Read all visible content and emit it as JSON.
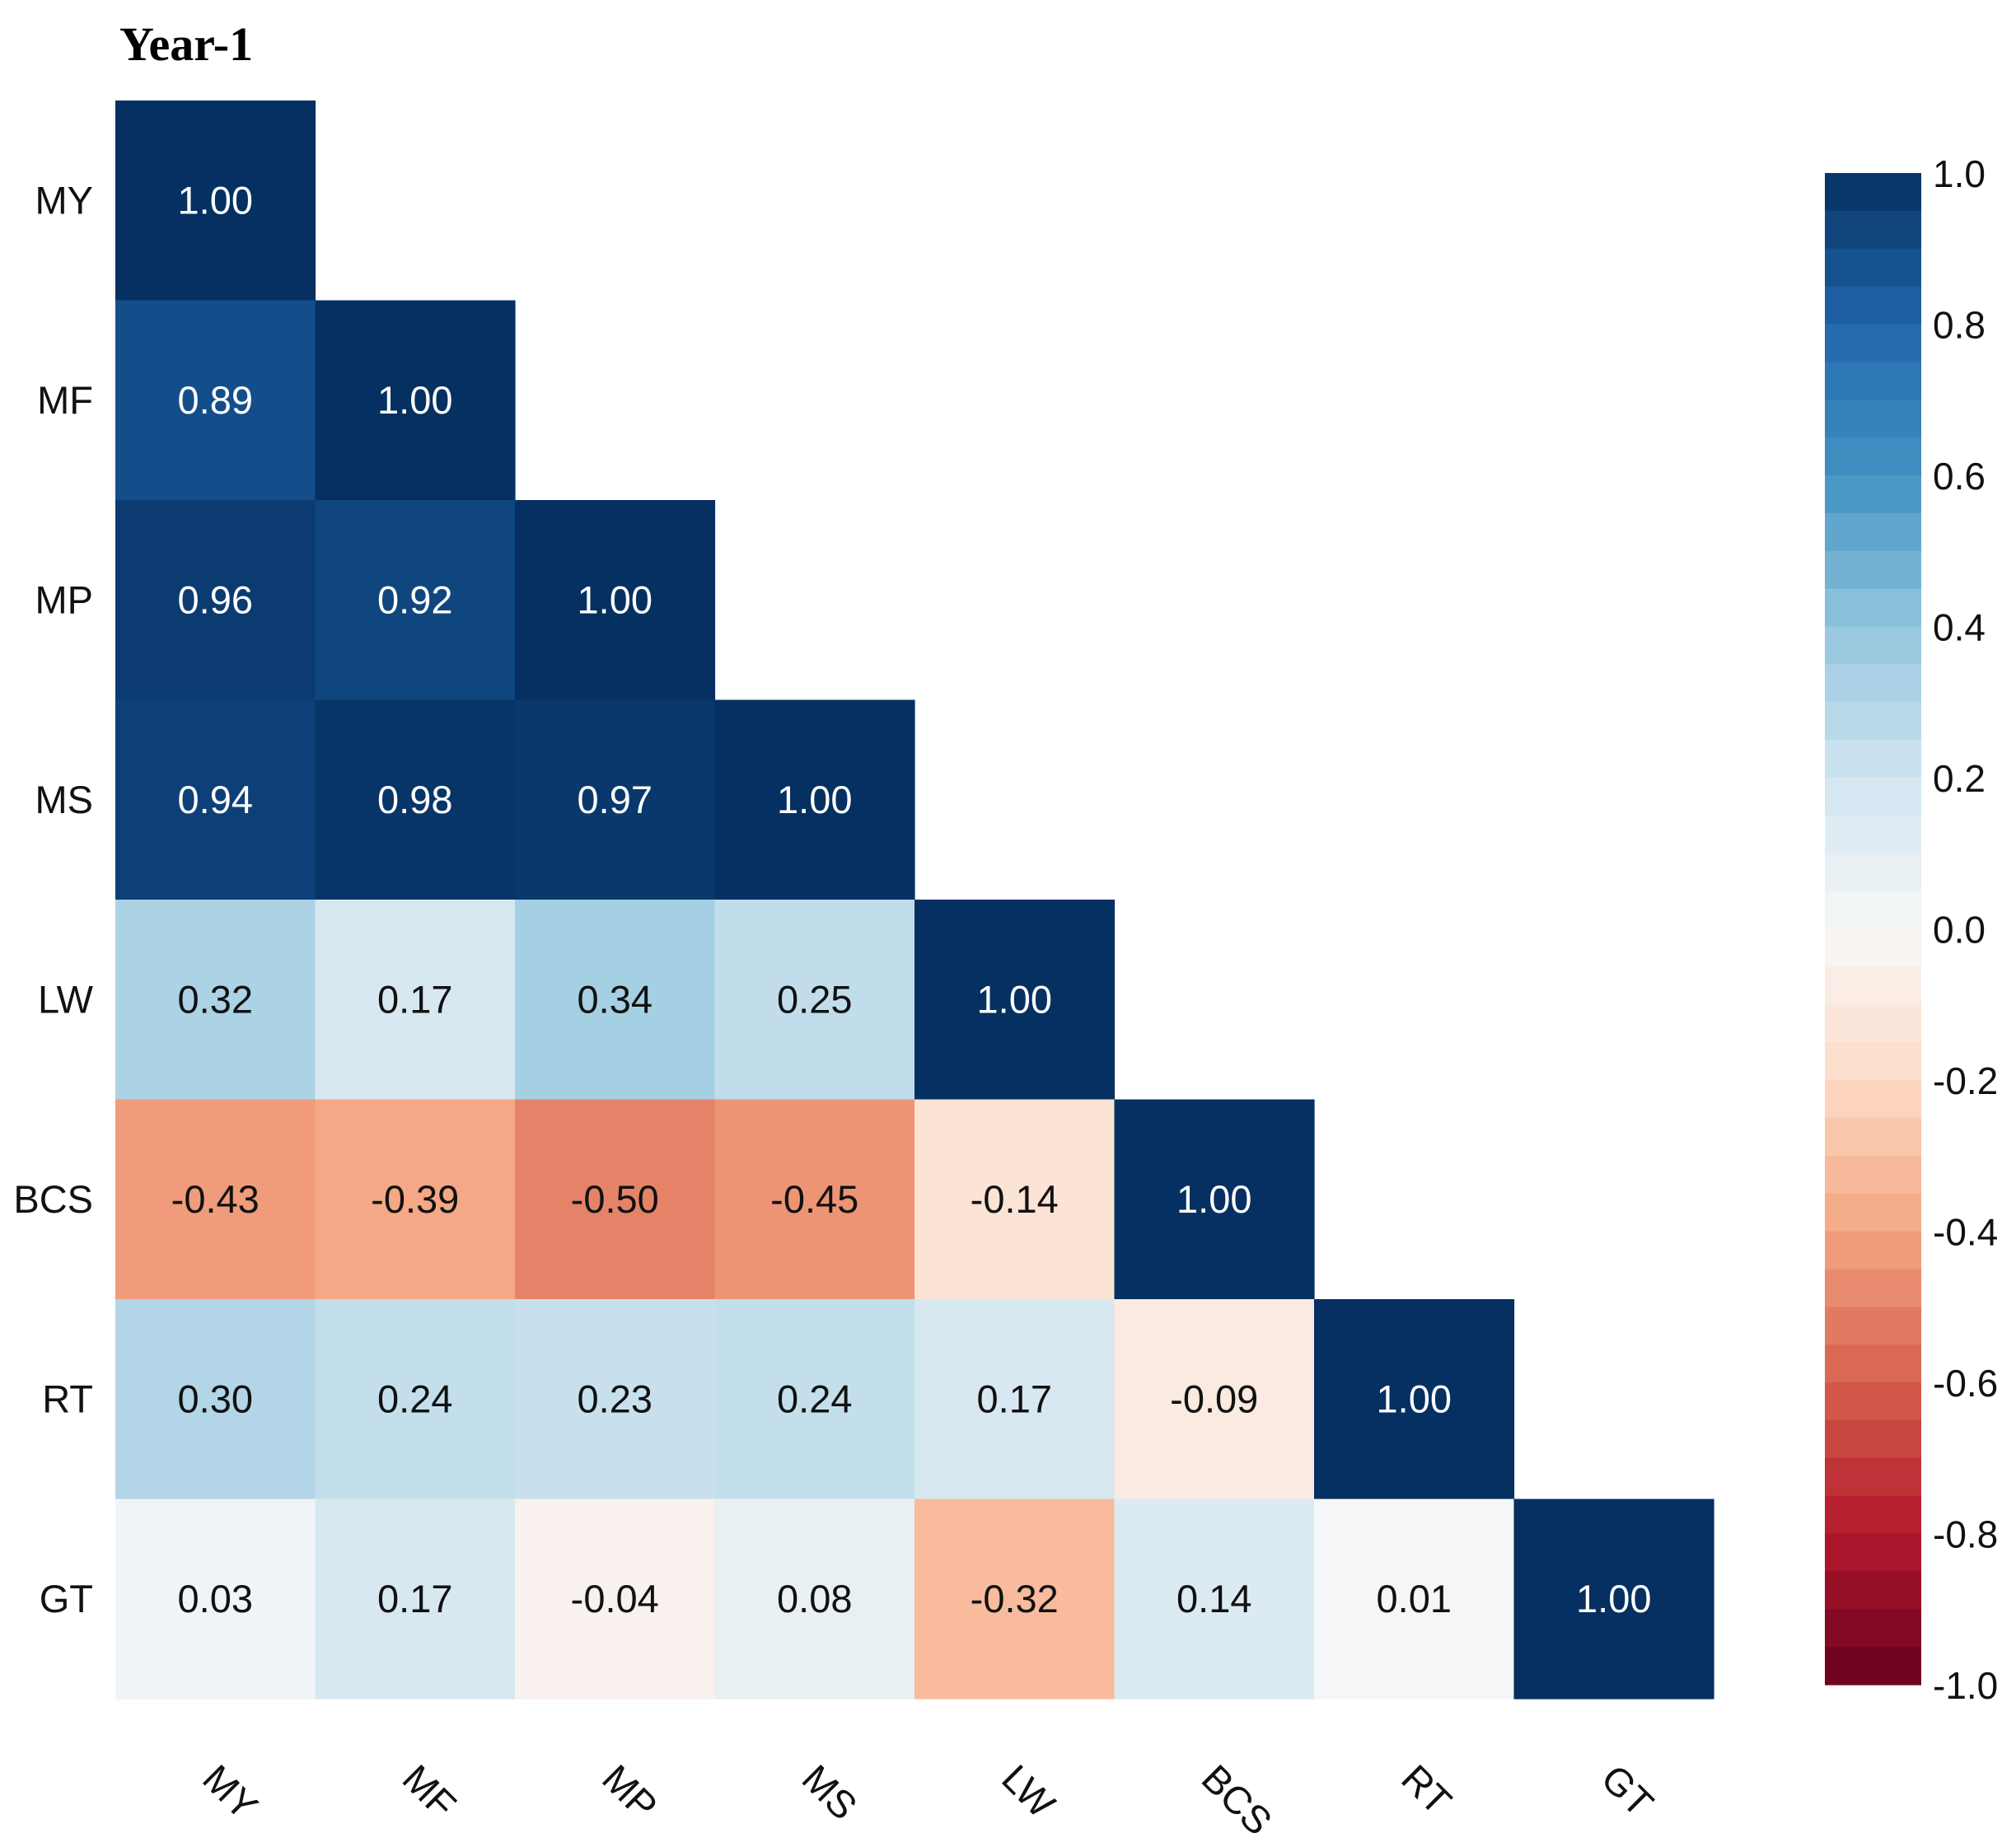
{
  "chart_data": {
    "type": "heatmap",
    "title": "Year-1",
    "subtype": "lower-triangular correlation matrix",
    "variables": [
      "MY",
      "MF",
      "MP",
      "MS",
      "LW",
      "BCS",
      "RT",
      "GT"
    ],
    "row_labels": [
      "MY",
      "MF",
      "MP",
      "MS",
      "LW",
      "BCS",
      "RT",
      "GT"
    ],
    "col_labels": [
      "MY",
      "MF",
      "MP",
      "MS",
      "LW",
      "BCS",
      "RT",
      "GT"
    ],
    "values": [
      [
        1.0
      ],
      [
        0.89,
        1.0
      ],
      [
        0.96,
        0.92,
        1.0
      ],
      [
        0.94,
        0.98,
        0.97,
        1.0
      ],
      [
        0.32,
        0.17,
        0.34,
        0.25,
        1.0
      ],
      [
        -0.43,
        -0.39,
        -0.5,
        -0.45,
        -0.14,
        1.0
      ],
      [
        0.3,
        0.24,
        0.23,
        0.24,
        0.17,
        -0.09,
        1.0
      ],
      [
        0.03,
        0.17,
        -0.04,
        0.08,
        -0.32,
        0.14,
        0.01,
        1.0
      ]
    ],
    "value_labels": [
      [
        "1.00"
      ],
      [
        "0.89",
        "1.00"
      ],
      [
        "0.96",
        "0.92",
        "1.00"
      ],
      [
        "0.94",
        "0.98",
        "0.97",
        "1.00"
      ],
      [
        "0.32",
        "0.17",
        "0.34",
        "0.25",
        "1.00"
      ],
      [
        "-0.43",
        "-0.39",
        "-0.50",
        "-0.45",
        "-0.14",
        "1.00"
      ],
      [
        "0.30",
        "0.24",
        "0.23",
        "0.24",
        "0.17",
        "-0.09",
        "1.00"
      ],
      [
        "0.03",
        "0.17",
        "-0.04",
        "0.08",
        "-0.32",
        "0.14",
        "0.01",
        "1.00"
      ]
    ],
    "colorbar": {
      "range": [
        -1.0,
        1.0
      ],
      "tick_values": [
        1.0,
        0.8,
        0.6,
        0.4,
        0.2,
        0.0,
        -0.2,
        -0.4,
        -0.6,
        -0.8,
        -1.0
      ],
      "tick_labels": [
        "1.0",
        "0.8",
        "0.6",
        "0.4",
        "0.2",
        "0.0",
        "-0.2",
        "-0.4",
        "-0.6",
        "-0.8",
        "-1.0"
      ],
      "levels": 40,
      "colormap": "RdBu",
      "legend_position": "right"
    },
    "x_tick_rotation_deg": 45,
    "grid": false
  },
  "colors": {
    "text_dark": "#111111",
    "text_light": "#ffffff",
    "colormap_stops": [
      "#67001f",
      "#b2182b",
      "#d6604d",
      "#f4a582",
      "#fddbc7",
      "#f7f7f7",
      "#d1e5f0",
      "#92c5de",
      "#4393c3",
      "#2166ac",
      "#053061"
    ]
  }
}
